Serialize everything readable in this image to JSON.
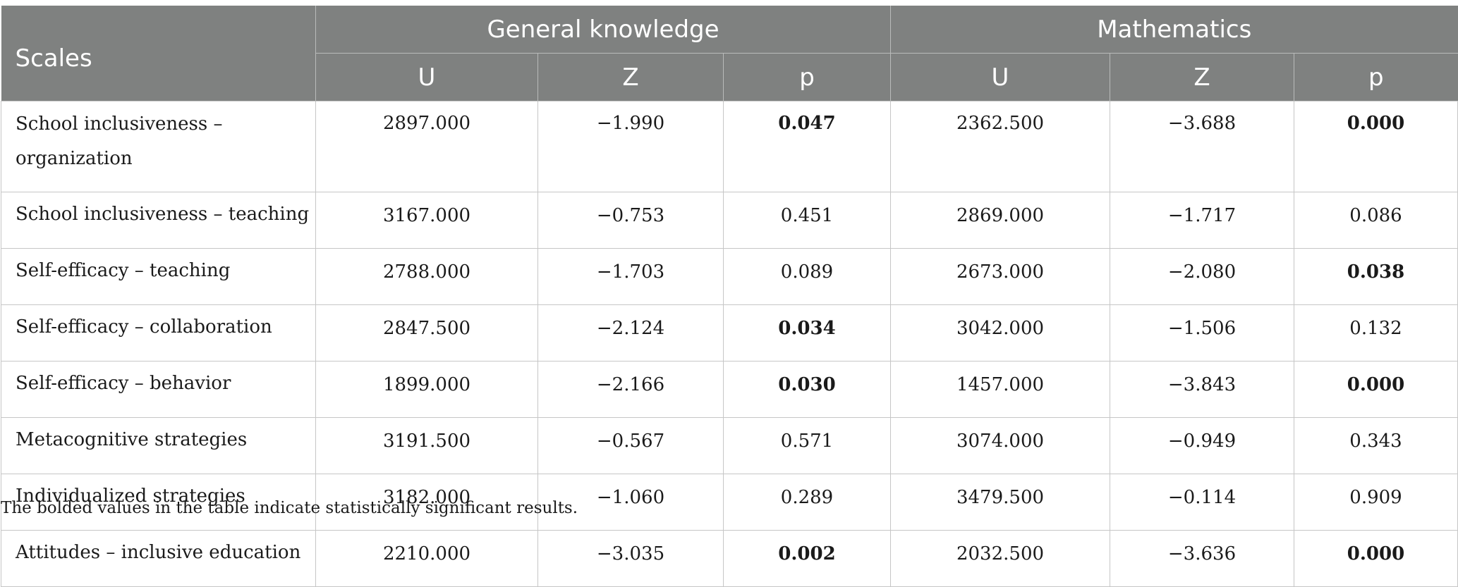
{
  "table": {
    "header": {
      "scales": "Scales",
      "groups": [
        "General knowledge",
        "Mathematics"
      ],
      "subcols": [
        "U",
        "Z",
        "p",
        "U",
        "Z",
        "p"
      ]
    },
    "rows": [
      {
        "label": "School inclusiveness – organization",
        "label_line1": "School inclusiveness –",
        "label_line2": "organization",
        "cells": [
          "2897.000",
          "−1.990",
          "0.047",
          "2362.500",
          "−3.688",
          "0.000"
        ],
        "bold": [
          false,
          false,
          true,
          false,
          false,
          true
        ]
      },
      {
        "label": "School inclusiveness – teaching",
        "cells": [
          "3167.000",
          "−0.753",
          "0.451",
          "2869.000",
          "−1.717",
          "0.086"
        ],
        "bold": [
          false,
          false,
          false,
          false,
          false,
          false
        ]
      },
      {
        "label": "Self-efficacy – teaching",
        "cells": [
          "2788.000",
          "−1.703",
          "0.089",
          "2673.000",
          "−2.080",
          "0.038"
        ],
        "bold": [
          false,
          false,
          false,
          false,
          false,
          true
        ]
      },
      {
        "label": "Self-efficacy – collaboration",
        "cells": [
          "2847.500",
          "−2.124",
          "0.034",
          "3042.000",
          "−1.506",
          "0.132"
        ],
        "bold": [
          false,
          false,
          true,
          false,
          false,
          false
        ]
      },
      {
        "label": "Self-efficacy – behavior",
        "cells": [
          "1899.000",
          "−2.166",
          "0.030",
          "1457.000",
          "−3.843",
          "0.000"
        ],
        "bold": [
          false,
          false,
          true,
          false,
          false,
          true
        ]
      },
      {
        "label": "Metacognitive strategies",
        "cells": [
          "3191.500",
          "−0.567",
          "0.571",
          "3074.000",
          "−0.949",
          "0.343"
        ],
        "bold": [
          false,
          false,
          false,
          false,
          false,
          false
        ]
      },
      {
        "label": "Individualized strategies",
        "cells": [
          "3182.000",
          "−1.060",
          "0.289",
          "3479.500",
          "−0.114",
          "0.909"
        ],
        "bold": [
          false,
          false,
          false,
          false,
          false,
          false
        ]
      },
      {
        "label": "Attitudes – inclusive education",
        "cells": [
          "2210.000",
          "−3.035",
          "0.002",
          "2032.500",
          "−3.636",
          "0.000"
        ],
        "bold": [
          false,
          false,
          true,
          false,
          false,
          true
        ]
      }
    ]
  },
  "footnote": "The bolded values in the table indicate statistically significant results."
}
